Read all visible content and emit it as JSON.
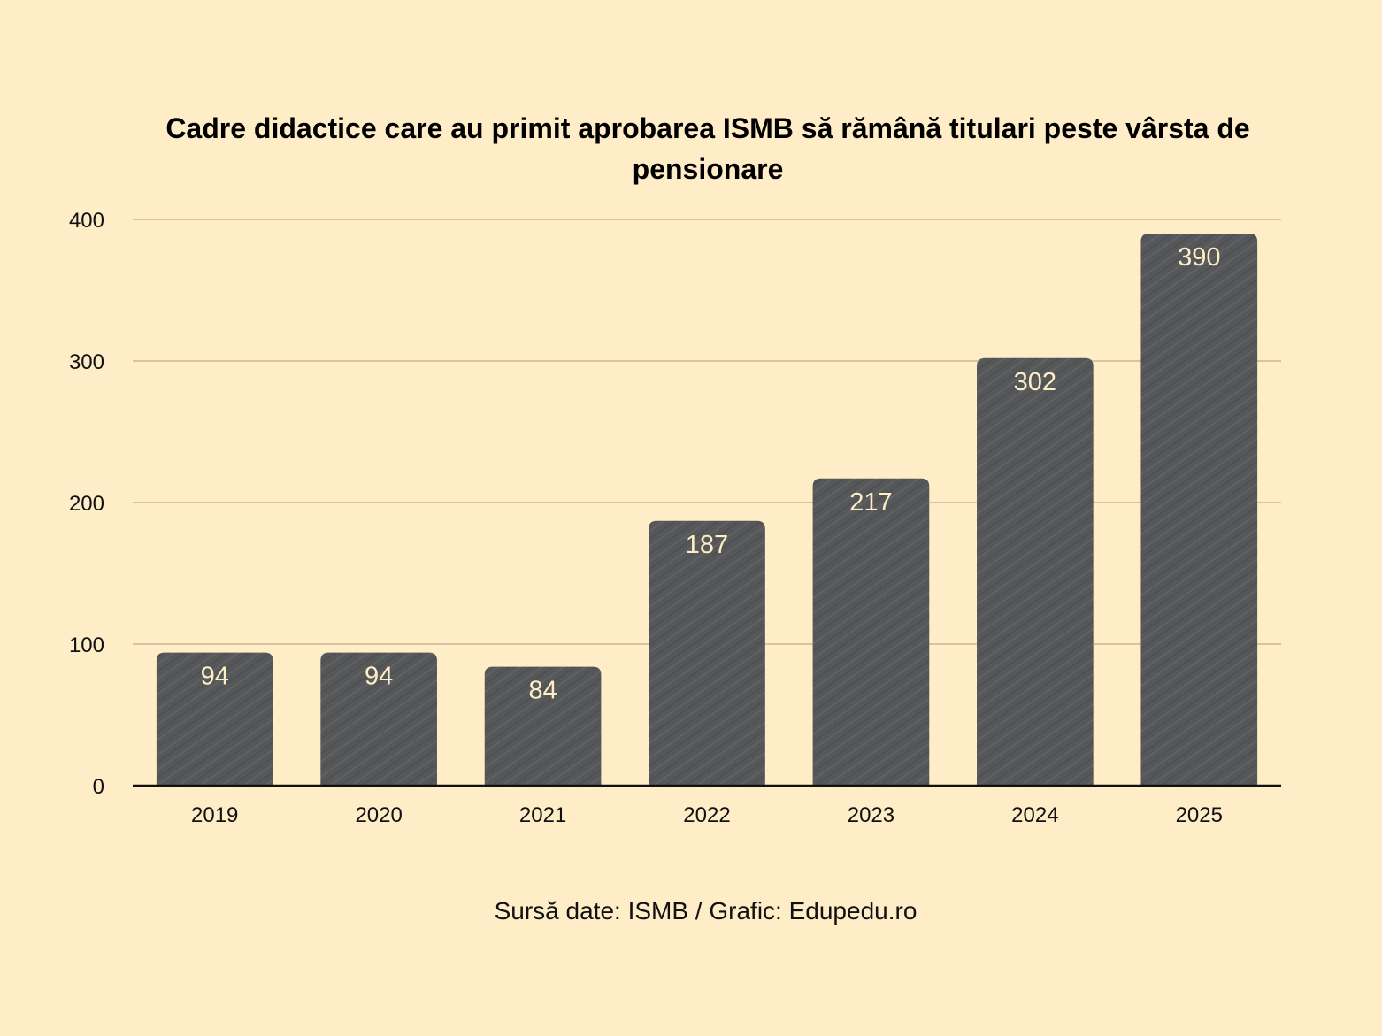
{
  "chart_data": {
    "type": "bar",
    "title": "Cadre didactice care au primit aprobarea ISMB să rămână titulari peste vârsta de pensionare",
    "xlabel": "",
    "ylabel": "",
    "categories": [
      "2019",
      "2020",
      "2021",
      "2022",
      "2023",
      "2024",
      "2025"
    ],
    "values": [
      94,
      94,
      84,
      187,
      217,
      302,
      390
    ],
    "data_labels": [
      "94",
      "94",
      "84",
      "187",
      "217",
      "302",
      "390"
    ],
    "ylim": [
      0,
      400
    ],
    "yticks": [
      0,
      100,
      200,
      300,
      400
    ],
    "ytick_labels": [
      "0",
      "100",
      "200",
      "300",
      "400"
    ],
    "grid": true,
    "legend": "none",
    "source_note": "Sursă date: ISMB / Grafic: Edupedu.ro"
  },
  "colors": {
    "background": "#FEEDC6",
    "bar": "#555759",
    "bar_label": "#FEEDC6",
    "gridline": "#C9A88A",
    "axis": "#111111",
    "text": "#111111"
  }
}
